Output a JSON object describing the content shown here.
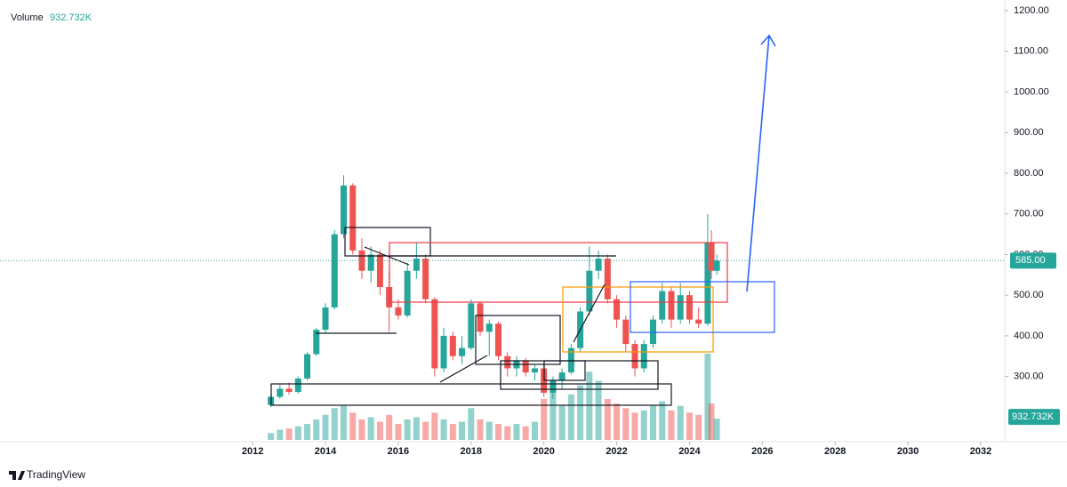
{
  "chart_data": {
    "type": "candlestick",
    "volume_title": "Volume",
    "volume_label": "932.732K",
    "last_price": 585,
    "last_price_label": "585.00",
    "up_color": "#26a69a",
    "down_color": "#ef5350",
    "xlim": [
      2005.06,
      2032.66
    ],
    "xticks": [
      2012,
      2014,
      2016,
      2018,
      2020,
      2022,
      2024,
      2026,
      2028,
      2030,
      2032
    ],
    "ylim": [
      144,
      1200
    ],
    "yticks": [
      {
        "value": 300,
        "label": "300.00"
      },
      {
        "value": 400,
        "label": "400.00"
      },
      {
        "value": 500,
        "label": "500.00"
      },
      {
        "value": 600,
        "label": "600.00"
      },
      {
        "value": 700,
        "label": "700.00"
      },
      {
        "value": 800,
        "label": "800.00"
      },
      {
        "value": 900,
        "label": "900.00"
      },
      {
        "value": 1000,
        "label": "1000.00"
      },
      {
        "value": 1100,
        "label": "1100.00"
      },
      {
        "value": 1200,
        "label": "1200.00"
      }
    ],
    "volume_ylim": [
      0,
      9000
    ],
    "candles": {
      "x": [
        2012.5,
        2012.75,
        2013.0,
        2013.25,
        2013.5,
        2013.75,
        2014.0,
        2014.25,
        2014.5,
        2014.75,
        2015.0,
        2015.25,
        2015.5,
        2015.75,
        2016.0,
        2016.25,
        2016.5,
        2016.75,
        2017.0,
        2017.25,
        2017.5,
        2017.75,
        2018.0,
        2018.25,
        2018.5,
        2018.75,
        2019.0,
        2019.25,
        2019.5,
        2019.75,
        2020.0,
        2020.25,
        2020.5,
        2020.75,
        2021.0,
        2021.25,
        2021.5,
        2021.75,
        2022.0,
        2022.25,
        2022.5,
        2022.75,
        2023.0,
        2023.25,
        2023.5,
        2023.75,
        2024.0,
        2024.25,
        2024.5,
        2024.6,
        2024.75
      ],
      "open": [
        230,
        250,
        270,
        262,
        295,
        355,
        415,
        470,
        650,
        770,
        610,
        560,
        600,
        520,
        470,
        450,
        560,
        590,
        490,
        320,
        400,
        350,
        370,
        480,
        410,
        430,
        350,
        320,
        340,
        310,
        320,
        260,
        290,
        310,
        370,
        460,
        560,
        590,
        490,
        440,
        380,
        320,
        380,
        440,
        510,
        440,
        500,
        440,
        430,
        630,
        560
      ],
      "high": [
        255,
        280,
        285,
        300,
        360,
        420,
        480,
        660,
        795,
        775,
        640,
        620,
        610,
        560,
        490,
        580,
        630,
        600,
        495,
        420,
        410,
        400,
        490,
        485,
        440,
        435,
        360,
        350,
        345,
        330,
        330,
        300,
        320,
        380,
        470,
        620,
        610,
        600,
        500,
        450,
        390,
        390,
        450,
        530,
        520,
        530,
        510,
        470,
        700,
        660,
        600
      ],
      "low": [
        225,
        245,
        255,
        258,
        290,
        350,
        405,
        465,
        640,
        600,
        540,
        530,
        500,
        410,
        440,
        445,
        540,
        480,
        300,
        310,
        340,
        330,
        365,
        400,
        350,
        340,
        300,
        300,
        300,
        290,
        250,
        245,
        270,
        305,
        360,
        450,
        540,
        480,
        420,
        360,
        300,
        310,
        370,
        430,
        420,
        430,
        430,
        420,
        425,
        540,
        550
      ],
      "close": [
        250,
        270,
        262,
        295,
        355,
        415,
        470,
        650,
        770,
        610,
        560,
        600,
        520,
        470,
        450,
        560,
        590,
        490,
        320,
        400,
        350,
        370,
        480,
        410,
        430,
        350,
        320,
        340,
        310,
        320,
        260,
        290,
        310,
        370,
        460,
        560,
        590,
        490,
        440,
        380,
        320,
        380,
        440,
        510,
        440,
        500,
        440,
        430,
        630,
        560,
        585
      ],
      "volume": [
        300,
        450,
        500,
        600,
        700,
        900,
        1100,
        1400,
        1500,
        1200,
        900,
        1000,
        800,
        1100,
        700,
        900,
        1000,
        800,
        1200,
        900,
        700,
        800,
        1400,
        900,
        800,
        700,
        600,
        700,
        600,
        800,
        1800,
        2200,
        1500,
        2000,
        2400,
        3000,
        2600,
        1800,
        1600,
        1400,
        1200,
        1300,
        1500,
        1700,
        1300,
        1500,
        1200,
        1100,
        3800,
        1600,
        932.732
      ]
    }
  },
  "brand": "TradingView"
}
